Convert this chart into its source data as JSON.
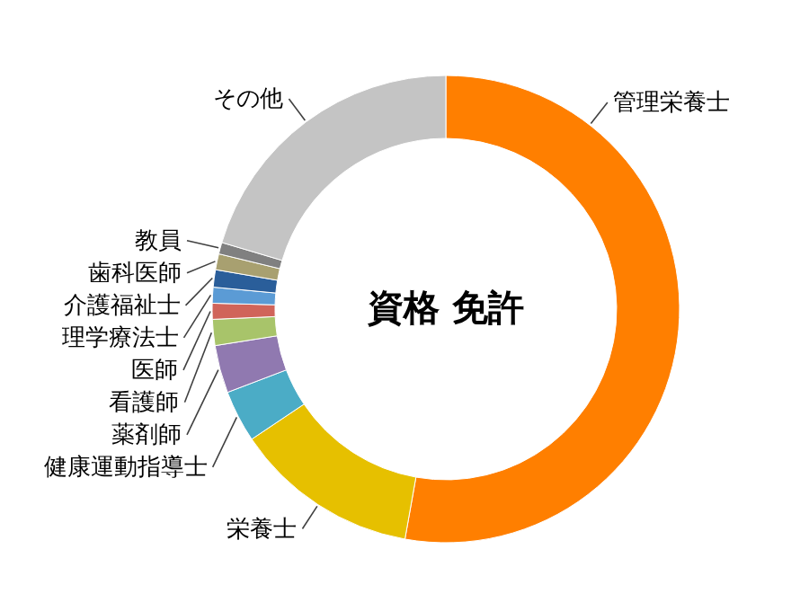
{
  "chart_data": {
    "type": "donut",
    "title": "資格 免許",
    "categories": [
      "管理栄養士",
      "栄養士",
      "健康運動指導士",
      "薬剤師",
      "看護師",
      "医師",
      "理学療法士",
      "介護福祉士",
      "歯科医師",
      "教員",
      "その他"
    ],
    "values": [
      52.8,
      12.8,
      3.6,
      3.3,
      1.8,
      1.1,
      1.1,
      1.2,
      1.1,
      0.8,
      20.4
    ],
    "colors": [
      "#ff7f00",
      "#e6c000",
      "#4bacc6",
      "#9079b0",
      "#a8c46a",
      "#d0645a",
      "#5b9bd5",
      "#2a5e9a",
      "#a8a070",
      "#808080",
      "#c4c4c4"
    ]
  }
}
